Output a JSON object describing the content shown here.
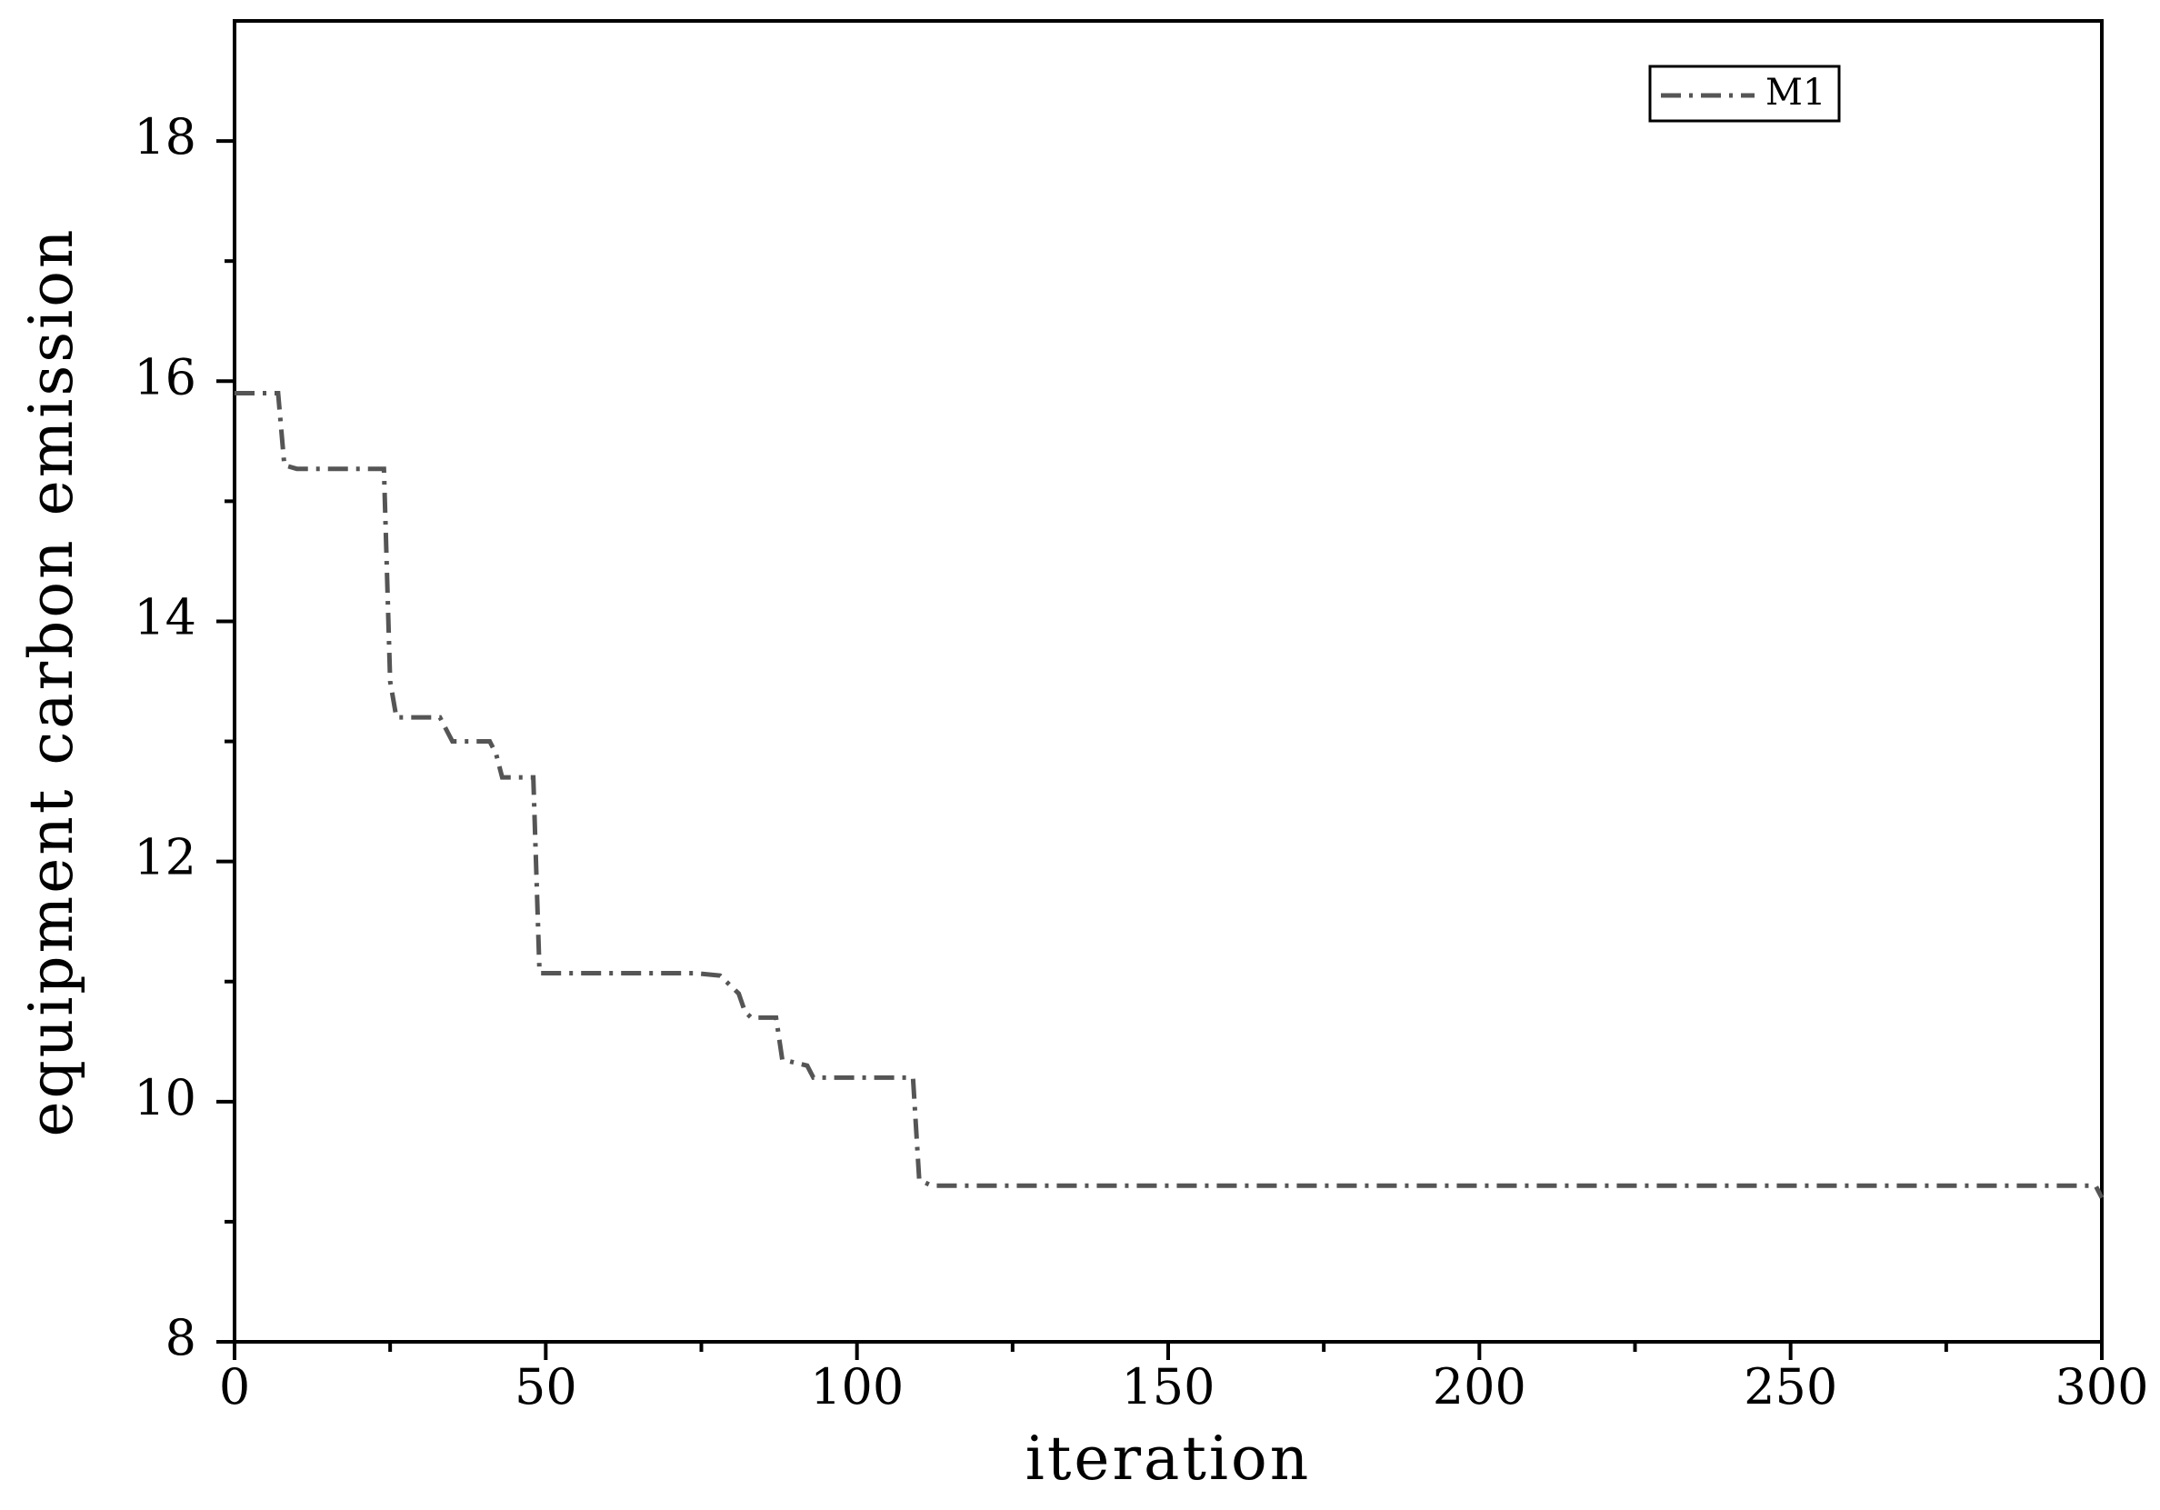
{
  "chart_data": {
    "type": "line",
    "x_label": "iteration",
    "y_label": "equipment carbon emission",
    "x": [
      0,
      7,
      8,
      10,
      24,
      25,
      26,
      33,
      35,
      41,
      42,
      43,
      48,
      49,
      74,
      78,
      79,
      81,
      82,
      83,
      87,
      88,
      92,
      93,
      109,
      110,
      112,
      299,
      300
    ],
    "series": [
      {
        "name": "M1",
        "color": "#555555",
        "values": [
          15.9,
          15.9,
          15.3,
          15.27,
          15.27,
          13.5,
          13.2,
          13.2,
          13.0,
          13.0,
          12.9,
          12.7,
          12.7,
          11.07,
          11.07,
          11.05,
          11.0,
          10.9,
          10.75,
          10.7,
          10.7,
          10.35,
          10.3,
          10.2,
          10.2,
          9.35,
          9.3,
          9.3,
          9.2
        ]
      }
    ],
    "xlim": [
      0,
      300
    ],
    "ylim": [
      8,
      19
    ],
    "xticks": [
      0,
      50,
      100,
      150,
      200,
      250,
      300
    ],
    "yticks": [
      8,
      10,
      12,
      14,
      16,
      18
    ],
    "xminorticks": [
      25,
      75,
      125,
      175,
      225,
      275
    ],
    "yminorticks": [
      9,
      11,
      13,
      15,
      17
    ],
    "legend": "top-right",
    "grid": false
  }
}
